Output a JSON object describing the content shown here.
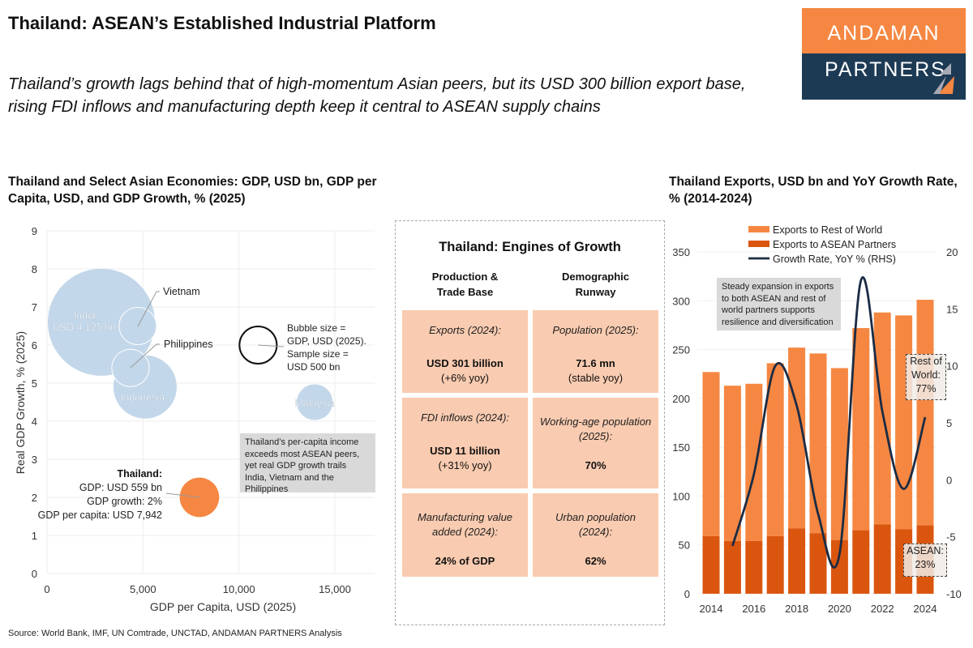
{
  "header": {
    "title": "Thailand: ASEAN’s Established Industrial Platform",
    "subtitle": "Thailand’s growth lags behind that of high-momentum Asian peers, but its USD 300 billion export base, rising FDI inflows and manufacturing depth keep it central to ASEAN supply chains",
    "logo": {
      "line1": "ANDAMAN",
      "line2": "PARTNERS",
      "colors": {
        "top": "#F58742",
        "bottom": "#1D3A55"
      }
    }
  },
  "chart_data": [
    {
      "type": "scatter",
      "subtype": "bubble",
      "title": "Thailand and Select Asian Economies: GDP, USD bn, GDP per Capita, USD, and GDP Growth, % (2025)",
      "xlabel": "GDP per Capita, USD (2025)",
      "ylabel": "Real GDP Growth, % (2025)",
      "xlim": [
        0,
        17000
      ],
      "ylim": [
        0,
        9
      ],
      "xticks": [
        "0",
        "5,000",
        "10,000",
        "15,000"
      ],
      "yticks": [
        "0",
        "1",
        "2",
        "3",
        "4",
        "5",
        "6",
        "7",
        "8",
        "9"
      ],
      "grid": true,
      "points": [
        {
          "name": "India",
          "label": "India",
          "label2": "USD 4,125 bn",
          "x": 2830,
          "y": 6.6,
          "gdp": 4125,
          "color": "#C3D7EA"
        },
        {
          "name": "Indonesia",
          "label": "Indonesia",
          "x": 5110,
          "y": 4.9,
          "gdp": 1440,
          "color": "#C3D7EA"
        },
        {
          "name": "Vietnam",
          "label": "Vietnam",
          "x": 4730,
          "y": 6.5,
          "gdp": 500,
          "color": "#C3D7EA"
        },
        {
          "name": "Philippines",
          "label": "Philippines",
          "x": 4350,
          "y": 5.4,
          "gdp": 500,
          "color": "#C3D7EA"
        },
        {
          "name": "Malaysia",
          "label": "Malaysia",
          "x": 13950,
          "y": 4.5,
          "gdp": 460,
          "color": "#C3D7EA"
        },
        {
          "name": "Thailand",
          "x": 7942,
          "y": 2,
          "gdp": 559,
          "color": "#F58742"
        }
      ],
      "thailand_label": {
        "title": "Thailand:",
        "lines": [
          "GDP: USD 559 bn",
          "GDP growth: 2%",
          "GDP per capita: USD 7,942"
        ]
      },
      "size_legend": {
        "x": 11000,
        "y": 6,
        "gdp": 500,
        "lines": [
          "Bubble size =",
          "GDP, USD (2025).",
          "Sample size =",
          "USD 500 bn"
        ]
      },
      "annotation": "Thailand’s per-capita income exceeds most ASEAN peers, yet real GDP growth trails India, Vietnam and the Philippines"
    },
    {
      "type": "bar",
      "subtype": "stacked-bar-with-line",
      "title": "Thailand Exports, USD bn and YoY Growth Rate, % (2014-2024)",
      "categories": [
        2014,
        2015,
        2016,
        2017,
        2018,
        2019,
        2020,
        2021,
        2022,
        2023,
        2024
      ],
      "xticks": [
        "2014",
        "2016",
        "2018",
        "2020",
        "2022",
        "2024"
      ],
      "ylim": [
        0,
        350
      ],
      "y2lim": [
        -10,
        20
      ],
      "yticks": [
        "0",
        "50",
        "100",
        "150",
        "200",
        "250",
        "300",
        "350"
      ],
      "y2ticks": [
        "-10",
        "-5",
        "0",
        "5",
        "10",
        "15",
        "20"
      ],
      "series": [
        {
          "name": "Exports to ASEAN Partners",
          "color": "#DA560E",
          "values": [
            59,
            54,
            54,
            59,
            67,
            62,
            55,
            65,
            71,
            66,
            70
          ]
        },
        {
          "name": "Exports to Rest of World",
          "color": "#F58742",
          "values": [
            168,
            159,
            161,
            177,
            185,
            184,
            176,
            207,
            217,
            219,
            231
          ]
        },
        {
          "name": "Growth Rate, YoY % (RHS)",
          "color": "#1B2C44",
          "axis": "right",
          "values": [
            null,
            -5.8,
            0.5,
            10,
            6.5,
            -3,
            -6.5,
            17.5,
            6,
            -0.8,
            5.5
          ]
        }
      ],
      "legend": {
        "placement": "top",
        "items": [
          "Exports to Rest of World",
          "Exports to ASEAN Partners",
          "Growth Rate, YoY % (RHS)"
        ]
      },
      "annotation": "Steady expansion in exports to both ASEAN and rest of world partners supports resilience and diversification",
      "share_labels": {
        "rest": [
          "Rest of",
          "World:",
          "77%"
        ],
        "asean": [
          "ASEAN:",
          "23%"
        ]
      }
    }
  ],
  "panel": {
    "title": "Thailand: Engines of Growth",
    "columns": [
      [
        "Production &",
        "Trade Base"
      ],
      [
        "Demographic",
        "Runway"
      ]
    ],
    "cells": [
      {
        "label": "Exports (2024):",
        "value": "USD 301 billion",
        "sub": "(+6% yoy)"
      },
      {
        "label": "Population (2025):",
        "value": "71.6 mn",
        "sub": "(stable yoy)"
      },
      {
        "label": "FDI inflows (2024):",
        "value": "USD 11 billion",
        "sub": "(+31% yoy)"
      },
      {
        "label": "Working-age population (2025):",
        "value": "70%",
        "sub": ""
      },
      {
        "label": "Manufacturing value added (2024):",
        "value": "24% of GDP",
        "sub": ""
      },
      {
        "label": "Urban population (2024):",
        "value": "62%",
        "sub": ""
      }
    ],
    "cell_color": "#F9CBB0"
  },
  "source": "Source: World Bank, IMF, UN Comtrade, UNCTAD, ANDAMAN PARTNERS Analysis"
}
